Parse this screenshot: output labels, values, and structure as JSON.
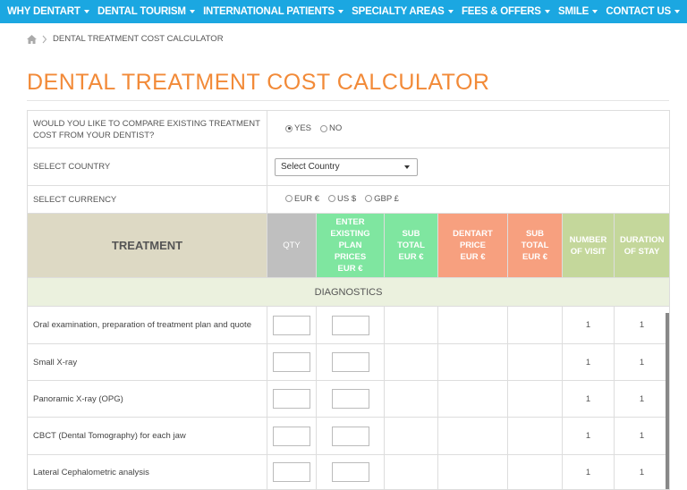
{
  "nav": [
    "WHY DENTART",
    "DENTAL TOURISM",
    "INTERNATIONAL PATIENTS",
    "SPECIALTY AREAS",
    "FEES & OFFERS",
    "SMILE",
    "CONTACT US"
  ],
  "breadcrumb": "DENTAL TREATMENT COST CALCULATOR",
  "title": "DENTAL TREATMENT COST CALCULATOR",
  "form": [
    {
      "label": "WOULD YOU LIKE TO COMPARE EXISTING TREATMENT COST FROM YOUR DENTIST?",
      "options": [
        "YES",
        "NO"
      ],
      "selected": 0
    },
    {
      "label": "SELECT COUNTRY",
      "select": "Select Country"
    },
    {
      "label": "SELECT CURRENCY",
      "options": [
        "EUR €",
        "US $",
        "GBP £"
      ]
    }
  ],
  "table": {
    "headers": [
      [
        "TREATMENT"
      ],
      [
        "QTY"
      ],
      [
        "ENTER",
        "EXISTING",
        "PLAN PRICES",
        "EUR €"
      ],
      [
        "SUB",
        "TOTAL",
        "EUR €"
      ],
      [
        "DENTART",
        "PRICE",
        "EUR €"
      ],
      [
        "SUB",
        "TOTAL",
        "EUR €"
      ],
      [
        "NUMBER",
        "OF VISIT"
      ],
      [
        "DURATION",
        "OF STAY"
      ]
    ],
    "section": "DIAGNOSTICS",
    "rows": [
      {
        "name": "Oral examination, preparation of treatment plan and quote",
        "visits": 1,
        "stay": 1
      },
      {
        "name": "Small X-ray",
        "visits": 1,
        "stay": 1
      },
      {
        "name": "Panoramic X-ray (OPG)",
        "visits": 1,
        "stay": 1
      },
      {
        "name": "CBCT (Dental Tomography) for each jaw",
        "visits": 1,
        "stay": 1
      },
      {
        "name": "Lateral Cephalometric analysis",
        "visits": 1,
        "stay": 1
      }
    ]
  }
}
